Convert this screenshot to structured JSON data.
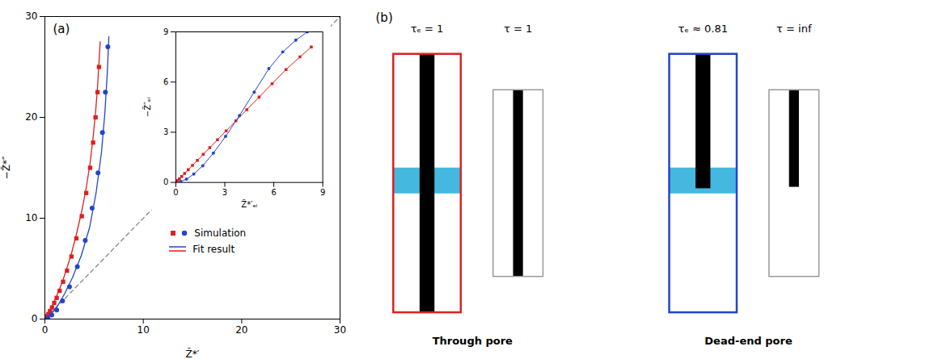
{
  "chart_data": [
    {
      "type": "scatter",
      "title": "(a)",
      "x_label": "Z̃*′",
      "y_label": "−Z̃*″",
      "xlim": [
        0,
        30
      ],
      "ylim": [
        0,
        30
      ],
      "xticks": [
        0,
        10,
        20,
        30
      ],
      "yticks": [
        0,
        10,
        20,
        30
      ],
      "grid": false,
      "legend": "lower right",
      "series": [
        {
          "type": "line",
          "color": "#888888",
          "line_style": "dashed",
          "x": [
            0,
            30
          ],
          "values": [
            0,
            30
          ]
        },
        {
          "name": "Fit result",
          "type": "line",
          "color": "#dd2020",
          "x": [
            0.0,
            0.03,
            0.07,
            0.13,
            0.22,
            0.35,
            0.52,
            0.72,
            0.95,
            1.2,
            1.5,
            1.85,
            2.25,
            2.7,
            3.2,
            3.75,
            4.2,
            4.6,
            4.9,
            5.15,
            5.35,
            5.5,
            5.62
          ],
          "values": [
            0.0,
            0.04,
            0.1,
            0.22,
            0.38,
            0.6,
            0.9,
            1.28,
            1.75,
            2.3,
            3.0,
            3.9,
            5.1,
            6.5,
            8.4,
            10.7,
            13.0,
            15.5,
            18.0,
            20.5,
            23.0,
            25.5,
            27.5
          ]
        },
        {
          "name": "Fit result",
          "type": "line",
          "color": "#2244cc",
          "x": [
            0.0,
            0.15,
            0.4,
            0.8,
            1.35,
            2.0,
            2.8,
            3.7,
            4.55,
            5.2,
            5.75,
            6.1,
            6.35,
            6.5
          ],
          "values": [
            0.0,
            0.08,
            0.28,
            0.7,
            1.4,
            2.5,
            4.1,
            6.3,
            9.1,
            12.5,
            16.5,
            20.5,
            24.5,
            28.0
          ]
        },
        {
          "name": "Simulation",
          "type": "scatter",
          "marker": "square",
          "color": "#dd2020",
          "x": [
            0.05,
            0.12,
            0.22,
            0.35,
            0.52,
            0.72,
            0.95,
            1.2,
            1.5,
            1.85,
            2.25,
            2.7,
            3.2,
            3.75,
            4.2,
            4.6,
            4.9,
            5.15,
            5.35,
            5.5
          ],
          "values": [
            0.05,
            0.15,
            0.3,
            0.5,
            0.8,
            1.15,
            1.6,
            2.1,
            2.8,
            3.7,
            4.8,
            6.2,
            8.0,
            10.2,
            12.5,
            15.0,
            17.5,
            20.0,
            22.5,
            25.0
          ]
        },
        {
          "name": "Simulation",
          "type": "scatter",
          "marker": "circle",
          "color": "#2244cc",
          "x": [
            0.3,
            0.7,
            1.2,
            1.8,
            2.5,
            3.3,
            4.1,
            4.8,
            5.4,
            5.85,
            6.15,
            6.4
          ],
          "values": [
            0.1,
            0.4,
            0.9,
            1.8,
            3.2,
            5.2,
            7.8,
            11.0,
            14.5,
            18.5,
            22.5,
            27.0
          ]
        }
      ]
    },
    {
      "type": "line",
      "x_label": "Z̃*′ₑₗ",
      "y_label": "−Z̃″ₑₗ",
      "xlim": [
        0,
        9
      ],
      "ylim": [
        0,
        9
      ],
      "xticks": [
        0,
        3,
        6,
        9
      ],
      "yticks": [
        0,
        3,
        6,
        9
      ],
      "grid": false,
      "series": [
        {
          "type": "line",
          "marker": "square",
          "color": "#dd2020",
          "x": [
            0.02,
            0.06,
            0.12,
            0.22,
            0.36,
            0.54,
            0.76,
            1.02,
            1.32,
            1.68,
            2.08,
            2.55,
            3.08,
            3.68,
            4.35,
            5.1,
            5.9,
            6.75,
            7.6,
            8.3
          ],
          "values": [
            0.02,
            0.06,
            0.12,
            0.22,
            0.36,
            0.54,
            0.76,
            1.02,
            1.32,
            1.68,
            2.08,
            2.55,
            3.08,
            3.68,
            4.35,
            5.1,
            5.9,
            6.75,
            7.5,
            8.1
          ]
        },
        {
          "type": "line",
          "marker": "circle",
          "color": "#2244cc",
          "x": [
            0.3,
            0.65,
            1.1,
            1.65,
            2.3,
            3.05,
            3.9,
            4.8,
            5.7,
            6.55,
            7.35,
            8.05
          ],
          "values": [
            0.05,
            0.2,
            0.5,
            1.0,
            1.75,
            2.75,
            4.0,
            5.4,
            6.8,
            7.8,
            8.5,
            9.0
          ]
        }
      ]
    },
    {
      "type": "diagram",
      "title": "(b)",
      "annotations": [
        "τₑ = 1",
        "τ = 1",
        "τₑ ≈ 0.81",
        "τ = inf",
        "Through pore",
        "Dead-end pore"
      ],
      "colors": [
        "#dd2020",
        "#999999",
        "#2244cc",
        "#999999"
      ],
      "color": "#45b8e0"
    }
  ]
}
